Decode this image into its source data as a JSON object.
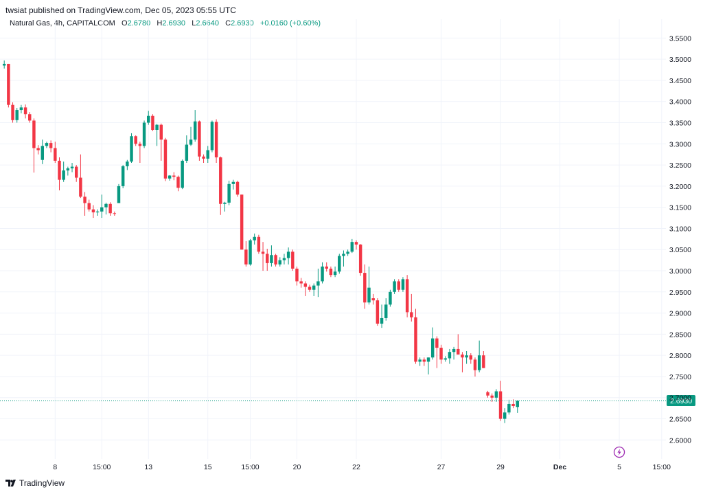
{
  "header": {
    "published": "twsiat published on TradingView.com, Dec 05, 2023 05:55 UTC"
  },
  "legend": {
    "symbol": "Natural Gas, 4h, CAPITALCOM",
    "o_label": "O",
    "o_value": "2.6780",
    "h_label": "H",
    "h_value": "2.6930",
    "l_label": "L",
    "l_value": "2.6640",
    "c_label": "C",
    "c_value": "2.6930",
    "change": "+0.0160 (+0.60%)"
  },
  "footer": {
    "brand": "TradingView"
  },
  "colors": {
    "up": "#089981",
    "down": "#f23645",
    "grid": "#f0f3fa",
    "price_line": "#089981",
    "flash": "#9c27b0"
  },
  "chart_data": {
    "type": "candlestick",
    "ylim": [
      2.555,
      3.575
    ],
    "y_ticks": [
      "3.5500",
      "3.5000",
      "3.4500",
      "3.4000",
      "3.3500",
      "3.3000",
      "3.2500",
      "3.2000",
      "3.1500",
      "3.1000",
      "3.0500",
      "3.0000",
      "2.9500",
      "2.9000",
      "2.8500",
      "2.8000",
      "2.7500",
      "2.7000",
      "2.6500",
      "2.6000"
    ],
    "x_ticks": [
      {
        "label": "8",
        "index": 12
      },
      {
        "label": "15:00",
        "index": 23
      },
      {
        "label": "13",
        "index": 34
      },
      {
        "label": "15",
        "index": 48
      },
      {
        "label": "15:00",
        "index": 58
      },
      {
        "label": "20",
        "index": 69
      },
      {
        "label": "22",
        "index": 83
      },
      {
        "label": "27",
        "index": 103
      },
      {
        "label": "29",
        "index": 117
      },
      {
        "label": "Dec",
        "index": 131
      },
      {
        "label": "5",
        "index": 145
      },
      {
        "label": "15:00",
        "index": 155
      }
    ],
    "x_range": [
      -1,
      156
    ],
    "last_price": "2.6930",
    "candles": [
      [
        3.485,
        3.497,
        3.478,
        3.489
      ],
      [
        3.489,
        3.489,
        3.386,
        3.392
      ],
      [
        3.392,
        3.398,
        3.35,
        3.356
      ],
      [
        3.356,
        3.385,
        3.35,
        3.38
      ],
      [
        3.38,
        3.392,
        3.372,
        3.386
      ],
      [
        3.386,
        3.393,
        3.36,
        3.37
      ],
      [
        3.37,
        3.375,
        3.35,
        3.355
      ],
      [
        3.355,
        3.36,
        3.232,
        3.29
      ],
      [
        3.29,
        3.297,
        3.275,
        3.285
      ],
      [
        3.262,
        3.31,
        3.252,
        3.295
      ],
      [
        3.295,
        3.305,
        3.29,
        3.302
      ],
      [
        3.302,
        3.308,
        3.28,
        3.29
      ],
      [
        3.29,
        3.305,
        3.255,
        3.26
      ],
      [
        3.26,
        3.268,
        3.19,
        3.215
      ],
      [
        3.215,
        3.258,
        3.21,
        3.237
      ],
      [
        3.237,
        3.246,
        3.225,
        3.242
      ],
      [
        3.242,
        3.255,
        3.233,
        3.246
      ],
      [
        3.246,
        3.25,
        3.21,
        3.22
      ],
      [
        3.22,
        3.275,
        3.172,
        3.175
      ],
      [
        3.175,
        3.186,
        3.13,
        3.16
      ],
      [
        3.16,
        3.168,
        3.14,
        3.145
      ],
      [
        3.145,
        3.155,
        3.125,
        3.138
      ],
      [
        3.138,
        3.145,
        3.13,
        3.14
      ],
      [
        3.14,
        3.18,
        3.125,
        3.15
      ],
      [
        3.15,
        3.161,
        3.133,
        3.158
      ],
      [
        3.158,
        3.162,
        3.13,
        3.136
      ],
      [
        3.136,
        3.14,
        3.13,
        3.135
      ],
      [
        3.16,
        3.205,
        3.16,
        3.2
      ],
      [
        3.2,
        3.25,
        3.195,
        3.247
      ],
      [
        3.247,
        3.262,
        3.238,
        3.258
      ],
      [
        3.258,
        3.325,
        3.255,
        3.318
      ],
      [
        3.318,
        3.32,
        3.295,
        3.3
      ],
      [
        3.3,
        3.305,
        3.255,
        3.295
      ],
      [
        3.295,
        3.355,
        3.29,
        3.35
      ],
      [
        3.35,
        3.378,
        3.345,
        3.366
      ],
      [
        3.366,
        3.37,
        3.33,
        3.333
      ],
      [
        3.333,
        3.347,
        3.295,
        3.345
      ],
      [
        3.345,
        3.348,
        3.26,
        3.31
      ],
      [
        3.31,
        3.314,
        3.212,
        3.218
      ],
      [
        3.218,
        3.226,
        3.213,
        3.225
      ],
      [
        3.225,
        3.233,
        3.214,
        3.222
      ],
      [
        3.222,
        3.225,
        3.188,
        3.196
      ],
      [
        3.196,
        3.263,
        3.193,
        3.26
      ],
      [
        3.26,
        3.32,
        3.255,
        3.298
      ],
      [
        3.298,
        3.34,
        3.295,
        3.31
      ],
      [
        3.31,
        3.38,
        3.305,
        3.353
      ],
      [
        3.353,
        3.355,
        3.26,
        3.27
      ],
      [
        3.27,
        3.275,
        3.255,
        3.265
      ],
      [
        3.265,
        3.295,
        3.255,
        3.285
      ],
      [
        3.285,
        3.355,
        3.28,
        3.352
      ],
      [
        3.352,
        3.358,
        3.255,
        3.268
      ],
      [
        3.268,
        3.27,
        3.132,
        3.158
      ],
      [
        3.158,
        3.163,
        3.14,
        3.161
      ],
      [
        3.161,
        3.213,
        3.155,
        3.205
      ],
      [
        3.205,
        3.215,
        3.192,
        3.21
      ],
      [
        3.21,
        3.213,
        3.175,
        3.18
      ],
      [
        3.18,
        3.18,
        3.05,
        3.05
      ],
      [
        3.05,
        3.07,
        3.01,
        3.015
      ],
      [
        3.015,
        3.075,
        3.012,
        3.072
      ],
      [
        3.072,
        3.088,
        3.062,
        3.08
      ],
      [
        3.08,
        3.085,
        3.04,
        3.045
      ],
      [
        3.045,
        3.068,
        3.0,
        3.04
      ],
      [
        3.04,
        3.052,
        3.0,
        3.018
      ],
      [
        3.018,
        3.06,
        3.01,
        3.037
      ],
      [
        3.037,
        3.04,
        3.01,
        3.015
      ],
      [
        3.015,
        3.032,
        3.01,
        3.025
      ],
      [
        3.025,
        3.04,
        3.015,
        3.03
      ],
      [
        3.03,
        3.055,
        3.015,
        3.045
      ],
      [
        3.045,
        3.05,
        3.0,
        3.005
      ],
      [
        3.005,
        3.01,
        2.965,
        2.975
      ],
      [
        2.975,
        2.983,
        2.96,
        2.97
      ],
      [
        2.97,
        2.975,
        2.94,
        2.962
      ],
      [
        2.962,
        2.967,
        2.95,
        2.955
      ],
      [
        2.955,
        2.97,
        2.94,
        2.965
      ],
      [
        2.965,
        3.005,
        2.938,
        2.975
      ],
      [
        2.975,
        3.02,
        2.97,
        3.01
      ],
      [
        3.01,
        3.02,
        2.998,
        3.005
      ],
      [
        3.005,
        3.01,
        2.985,
        2.99
      ],
      [
        2.99,
        3.01,
        2.985,
        2.998
      ],
      [
        2.998,
        3.04,
        2.993,
        3.035
      ],
      [
        3.035,
        3.048,
        3.01,
        3.04
      ],
      [
        3.04,
        3.05,
        3.035,
        3.045
      ],
      [
        3.045,
        3.075,
        3.042,
        3.068
      ],
      [
        3.068,
        3.072,
        3.05,
        3.062
      ],
      [
        3.062,
        3.063,
        2.988,
        2.995
      ],
      [
        2.995,
        3.015,
        2.91,
        2.925
      ],
      [
        2.925,
        3.01,
        2.92,
        2.96
      ],
      [
        2.935,
        2.945,
        2.92,
        2.93
      ],
      [
        2.93,
        2.935,
        2.87,
        2.875
      ],
      [
        2.875,
        2.92,
        2.865,
        2.888
      ],
      [
        2.888,
        2.935,
        2.882,
        2.92
      ],
      [
        2.92,
        2.955,
        2.915,
        2.95
      ],
      [
        2.95,
        2.98,
        2.945,
        2.975
      ],
      [
        2.975,
        2.98,
        2.95,
        2.955
      ],
      [
        2.955,
        2.985,
        2.95,
        2.98
      ],
      [
        2.98,
        2.99,
        2.89,
        2.902
      ],
      [
        2.902,
        2.945,
        2.88,
        2.89
      ],
      [
        2.89,
        2.91,
        2.78,
        2.785
      ],
      [
        2.785,
        2.795,
        2.775,
        2.79
      ],
      [
        2.79,
        2.795,
        2.775,
        2.785
      ],
      [
        2.785,
        2.795,
        2.755,
        2.795
      ],
      [
        2.795,
        2.866,
        2.79,
        2.84
      ],
      [
        2.84,
        2.845,
        2.77,
        2.818
      ],
      [
        2.818,
        2.825,
        2.78,
        2.79
      ],
      [
        2.79,
        2.798,
        2.785,
        2.793
      ],
      [
        2.793,
        2.815,
        2.78,
        2.808
      ],
      [
        2.808,
        2.82,
        2.79,
        2.815
      ],
      [
        2.815,
        2.85,
        2.805,
        2.802
      ],
      [
        2.802,
        2.808,
        2.76,
        2.795
      ],
      [
        2.795,
        2.81,
        2.78,
        2.8
      ],
      [
        2.8,
        2.805,
        2.78,
        2.79
      ],
      [
        2.79,
        2.795,
        2.75,
        2.765
      ],
      [
        2.765,
        2.835,
        2.76,
        2.8
      ],
      [
        2.8,
        2.81,
        2.77,
        2.77
      ],
      [
        2.713,
        2.716,
        2.7,
        2.705
      ],
      [
        2.705,
        2.71,
        2.69,
        2.7
      ],
      [
        2.7,
        2.72,
        2.69,
        2.715
      ],
      [
        2.715,
        2.74,
        2.645,
        2.65
      ],
      [
        2.65,
        2.675,
        2.64,
        2.665
      ],
      [
        2.665,
        2.695,
        2.66,
        2.685
      ],
      [
        2.685,
        2.696,
        2.675,
        2.68
      ],
      [
        2.678,
        2.693,
        2.664,
        2.693
      ]
    ]
  }
}
